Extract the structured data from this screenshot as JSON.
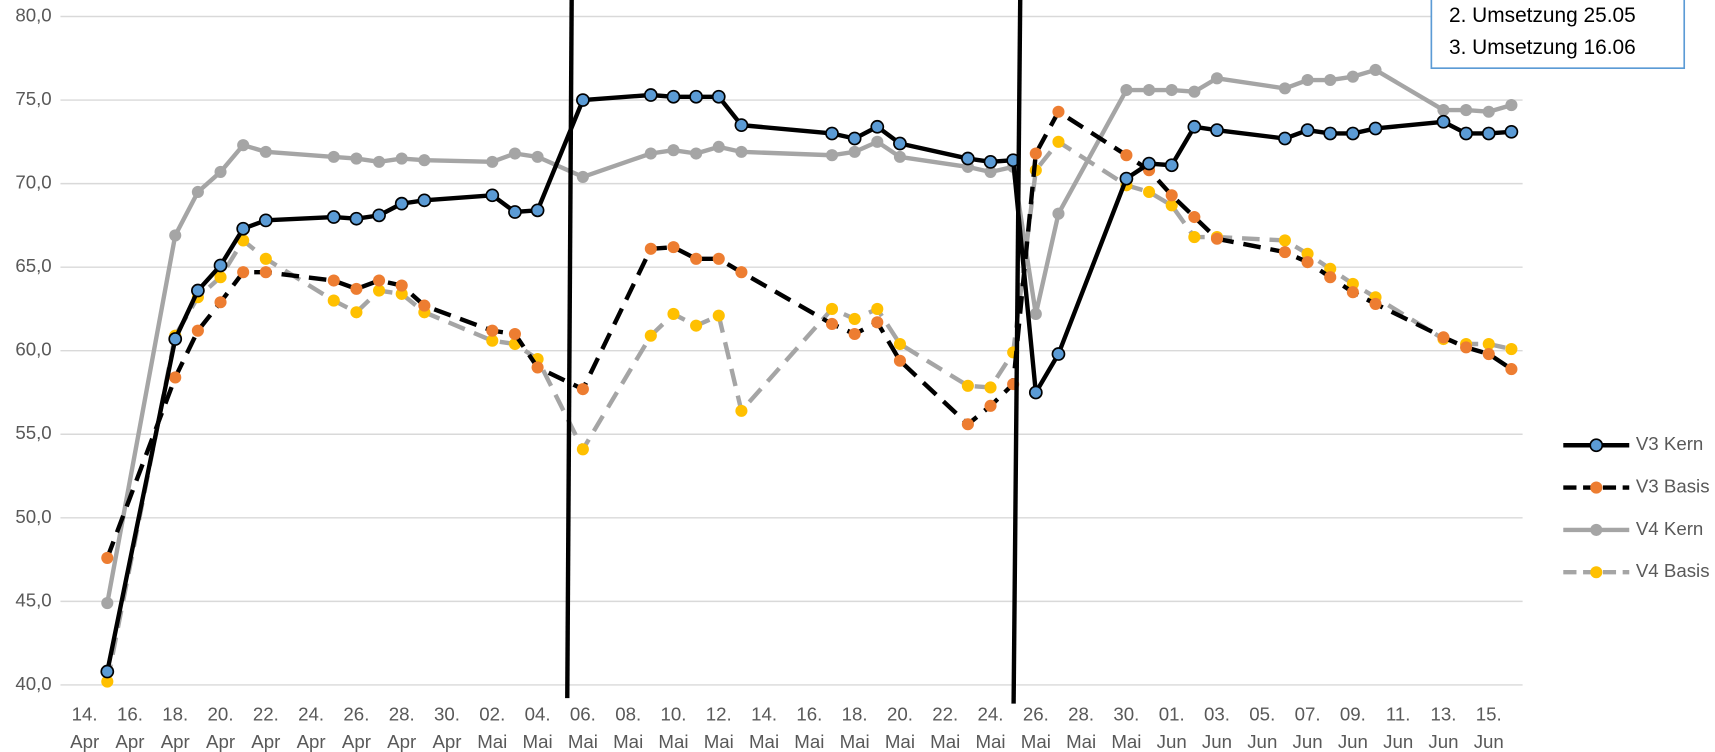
{
  "chart_data": {
    "type": "line",
    "categories": [
      "14. Apr",
      "16. Apr",
      "18. Apr",
      "20. Apr",
      "22. Apr",
      "24. Apr",
      "26. Apr",
      "28. Apr",
      "30. Apr",
      "02. Mai",
      "04. Mai",
      "06. Mai",
      "08. Mai",
      "10. Mai",
      "12. Mai",
      "14. Mai",
      "16. Mai",
      "18. Mai",
      "20. Mai",
      "22. Mai",
      "24. Mai",
      "26. Mai",
      "28. Mai",
      "30. Mai",
      "01. Jun",
      "03. Jun",
      "05. Jun",
      "07. Jun",
      "09. Jun",
      "11. Jun",
      "13. Jun",
      "15. Jun"
    ],
    "x": [
      "15. Apr",
      "18. Apr",
      "19. Apr",
      "20. Apr",
      "21. Apr",
      "22. Apr",
      "25. Apr",
      "26. Apr",
      "27. Apr",
      "28. Apr",
      "29. Apr",
      "02. Mai",
      "03. Mai",
      "04. Mai",
      "06. Mai",
      "09. Mai",
      "10. Mai",
      "11. Mai",
      "12. Mai",
      "13. Mai",
      "17. Mai",
      "18. Mai",
      "19. Mai",
      "20. Mai",
      "23. Mai",
      "24. Mai",
      "25. Mai",
      "26. Mai",
      "27. Mai",
      "30. Mai",
      "31. Mai",
      "01. Jun",
      "02. Jun",
      "03. Jun",
      "06. Jun",
      "07. Jun",
      "08. Jun",
      "09. Jun",
      "10. Jun",
      "13. Jun",
      "14. Jun",
      "15. Jun",
      "16. Jun"
    ],
    "series": [
      {
        "name": "V3 Kern",
        "color": "#5b9bd5",
        "marker_edge": "#000000",
        "line_color": "#000000",
        "dashed": false,
        "values": [
          40.8,
          60.7,
          63.6,
          65.1,
          67.3,
          67.8,
          68.0,
          67.9,
          68.1,
          68.8,
          69.0,
          69.3,
          68.3,
          68.4,
          75.0,
          75.3,
          75.2,
          75.2,
          75.2,
          73.5,
          73.0,
          72.7,
          73.4,
          72.4,
          71.5,
          71.3,
          71.4,
          57.5,
          59.8,
          70.3,
          71.2,
          71.1,
          73.4,
          73.2,
          72.7,
          73.2,
          73.0,
          73.0,
          73.3,
          73.7,
          73.0,
          73.0,
          73.1
        ]
      },
      {
        "name": "V3 Basis",
        "color": "#ed7d31",
        "line_color": "#000000",
        "dashed": true,
        "values": [
          47.6,
          58.4,
          61.2,
          62.9,
          64.7,
          64.7,
          64.2,
          63.7,
          64.2,
          63.9,
          62.7,
          61.2,
          61.0,
          59.0,
          57.7,
          66.1,
          66.2,
          65.5,
          65.5,
          64.7,
          61.6,
          61.0,
          61.7,
          59.4,
          55.6,
          56.7,
          58.0,
          71.8,
          74.3,
          71.7,
          70.8,
          69.3,
          68.0,
          66.7,
          65.9,
          65.3,
          64.4,
          63.5,
          62.8,
          60.8,
          60.2,
          59.8,
          58.9
        ]
      },
      {
        "name": "V4 Kern",
        "color": "#a5a5a5",
        "line_color": "#a5a5a5",
        "dashed": false,
        "values": [
          44.9,
          66.9,
          69.5,
          70.7,
          72.3,
          71.9,
          71.6,
          71.5,
          71.3,
          71.5,
          71.4,
          71.3,
          71.8,
          71.6,
          70.4,
          71.8,
          72.0,
          71.8,
          72.2,
          71.9,
          71.7,
          71.9,
          72.5,
          71.6,
          71.0,
          70.7,
          71.0,
          62.2,
          68.2,
          75.6,
          75.6,
          75.6,
          75.5,
          76.3,
          75.7,
          76.2,
          76.2,
          76.4,
          76.8,
          74.4,
          74.4,
          74.3,
          74.7
        ]
      },
      {
        "name": "V4 Basis",
        "color": "#ffc000",
        "line_color": "#a5a5a5",
        "dashed": true,
        "values": [
          40.2,
          60.9,
          63.2,
          64.4,
          66.6,
          65.5,
          63.0,
          62.3,
          63.6,
          63.4,
          62.3,
          60.6,
          60.4,
          59.5,
          54.1,
          60.9,
          62.2,
          61.5,
          62.1,
          56.4,
          62.5,
          61.9,
          62.5,
          60.4,
          57.9,
          57.8,
          59.9,
          70.8,
          72.5,
          69.9,
          69.5,
          68.7,
          66.8,
          66.8,
          66.6,
          65.8,
          64.9,
          64.0,
          63.2,
          60.7,
          60.4,
          60.4,
          60.1
        ]
      }
    ],
    "ylim": [
      40,
      80
    ],
    "yticks": [
      {
        "value": 40,
        "label": "40,0"
      },
      {
        "value": 45,
        "label": "45,0"
      },
      {
        "value": 50,
        "label": "50,0"
      },
      {
        "value": 55,
        "label": "55,0"
      },
      {
        "value": 60,
        "label": "60,0"
      },
      {
        "value": 65,
        "label": "65,0"
      },
      {
        "value": 70,
        "label": "70,0"
      },
      {
        "value": 75,
        "label": "75,0"
      },
      {
        "value": 80,
        "label": "80,0"
      }
    ],
    "grid": true,
    "legend": "right",
    "annotations": [
      "2. Umsetzung 25.05",
      "3. Umsetzung 16.06"
    ]
  }
}
